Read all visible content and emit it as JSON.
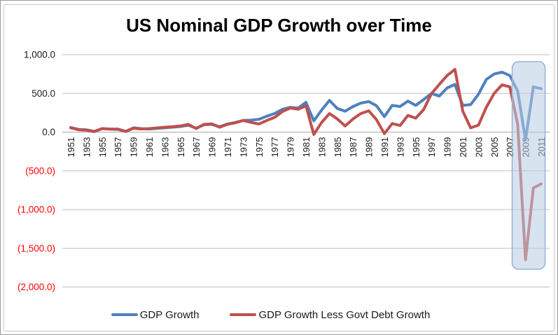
{
  "chart_data": {
    "type": "line",
    "title": "US Nominal GDP Growth over Time",
    "xlabel": "",
    "ylabel": "",
    "grid": true,
    "x": [
      1951,
      1952,
      1953,
      1954,
      1955,
      1956,
      1957,
      1958,
      1959,
      1960,
      1961,
      1962,
      1963,
      1964,
      1965,
      1966,
      1967,
      1968,
      1969,
      1970,
      1971,
      1972,
      1973,
      1974,
      1975,
      1976,
      1977,
      1978,
      1979,
      1980,
      1981,
      1982,
      1983,
      1984,
      1985,
      1986,
      1987,
      1988,
      1989,
      1990,
      1991,
      1992,
      1993,
      1994,
      1995,
      1996,
      1997,
      1998,
      1999,
      2000,
      2001,
      2002,
      2003,
      2004,
      2005,
      2006,
      2007,
      2008,
      2009,
      2010,
      2011
    ],
    "x_tick_years": [
      1951,
      1953,
      1955,
      1957,
      1959,
      1961,
      1963,
      1965,
      1967,
      1969,
      1971,
      1973,
      1975,
      1977,
      1979,
      1981,
      1983,
      1985,
      1987,
      1989,
      1991,
      1993,
      1995,
      1997,
      1999,
      2001,
      2003,
      2005,
      2007,
      2009,
      2011
    ],
    "series": [
      {
        "name": "GDP Growth",
        "color": "#4F81BD",
        "values": [
          60,
          35,
          30,
          10,
          45,
          40,
          40,
          10,
          55,
          45,
          40,
          48,
          55,
          63,
          72,
          90,
          50,
          95,
          100,
          70,
          105,
          125,
          150,
          155,
          165,
          205,
          240,
          295,
          320,
          310,
          385,
          145,
          285,
          410,
          305,
          270,
          330,
          375,
          395,
          340,
          200,
          345,
          330,
          400,
          345,
          420,
          500,
          465,
          570,
          615,
          345,
          355,
          490,
          680,
          750,
          775,
          730,
          530,
          -100,
          585,
          560
        ]
      },
      {
        "name": "GDP Growth Less Govt Debt Growth",
        "color": "#C0504D",
        "values": [
          55,
          30,
          25,
          5,
          45,
          38,
          35,
          8,
          50,
          40,
          45,
          54,
          63,
          71,
          80,
          100,
          45,
          100,
          105,
          63,
          100,
          120,
          150,
          125,
          105,
          150,
          190,
          265,
          310,
          295,
          340,
          -30,
          125,
          240,
          170,
          80,
          170,
          240,
          275,
          160,
          -20,
          110,
          85,
          215,
          180,
          290,
          495,
          615,
          730,
          810,
          270,
          55,
          90,
          320,
          500,
          610,
          585,
          100,
          -1650,
          -720,
          -670
        ]
      }
    ],
    "ylim": [
      -2000,
      1000
    ],
    "ytick_step": 500,
    "y_tick_labels": [
      "1,000.0",
      "500.0",
      "0.0",
      "(500.0)",
      "(1,000.0)",
      "(1,500.0)",
      "(2,000.0)"
    ],
    "y_label_color_positive": "#1a1a1a",
    "y_label_color_negative": "#FF0000",
    "x_label_color": "#1a1a1a",
    "gridline_color": "#BFBFBF",
    "legend_position": "bottom",
    "highlight_region": {
      "x_start": 2007.3,
      "x_end": 2011.5,
      "y_top": 910,
      "y_bottom": -1770,
      "fill": "#B8CCE4",
      "border": "#95B3D7"
    }
  },
  "legend": {
    "items": [
      {
        "label": "GDP Growth",
        "color": "#4F81BD"
      },
      {
        "label": "GDP Growth Less Govt Debt Growth",
        "color": "#C0504D"
      }
    ]
  }
}
